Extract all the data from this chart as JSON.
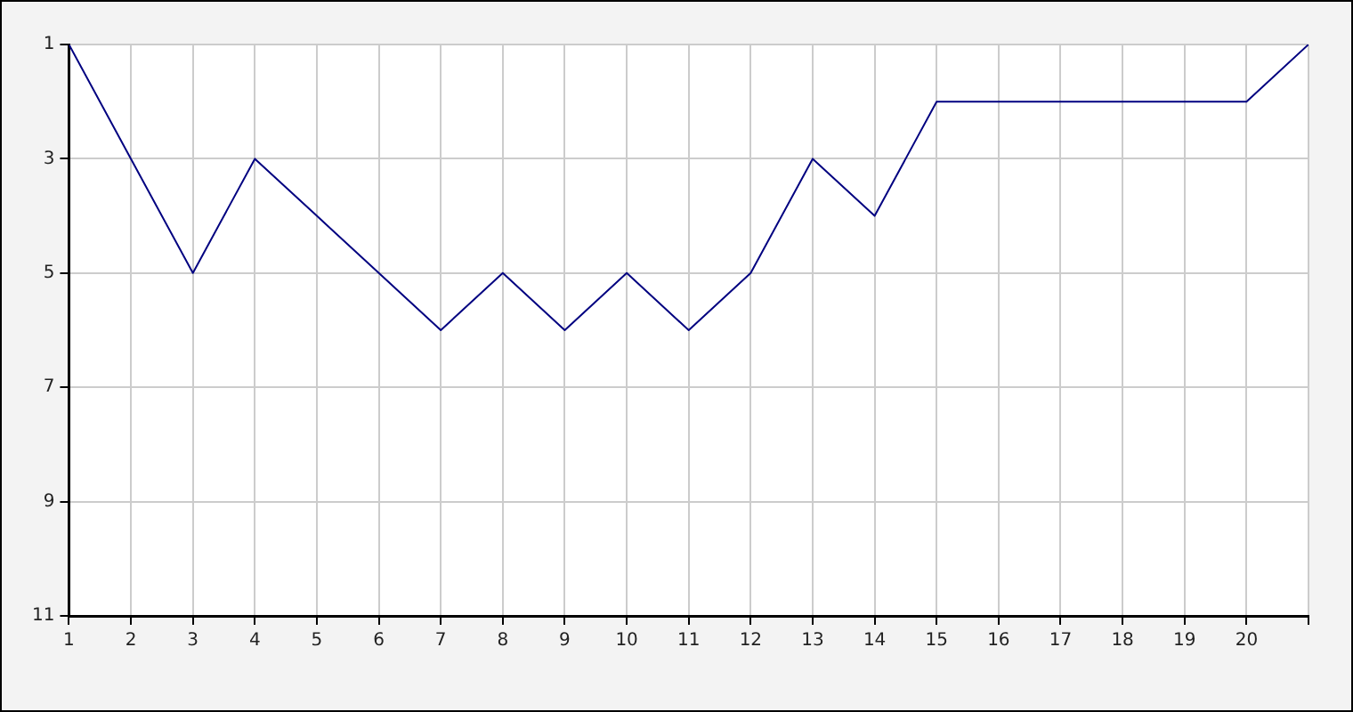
{
  "chart_data": {
    "type": "line",
    "x": [
      1,
      2,
      3,
      4,
      5,
      6,
      7,
      8,
      9,
      10,
      11,
      12,
      13,
      14,
      15,
      16,
      17,
      18,
      19,
      20,
      21
    ],
    "series": [
      {
        "color": "#000080",
        "values": [
          1,
          3,
          5,
          3,
          4,
          5,
          6,
          5,
          6,
          5,
          6,
          5,
          3,
          4,
          2,
          2,
          2,
          2,
          2,
          2,
          1
        ]
      }
    ],
    "xlim": [
      1,
      21
    ],
    "xticks": [
      1,
      2,
      3,
      4,
      5,
      6,
      7,
      8,
      9,
      10,
      11,
      12,
      13,
      14,
      15,
      16,
      17,
      18,
      19,
      20,
      {
        "value": 21,
        "label": null
      }
    ],
    "ylim": [
      11,
      1
    ],
    "yticks": [
      1,
      3,
      5,
      7,
      9,
      11
    ],
    "grid": true,
    "legend": false,
    "marker": "none",
    "line_style": "solid"
  }
}
